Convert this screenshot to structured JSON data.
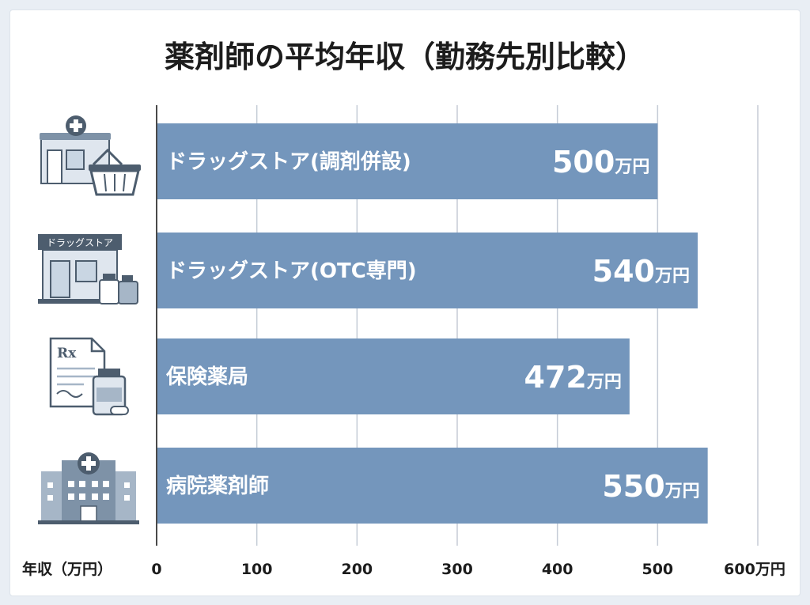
{
  "chart_data": {
    "type": "bar",
    "orientation": "horizontal",
    "title": "薬剤師の平均年収（勤務先別比較）",
    "xlabel": "年収（万円）",
    "xlim": [
      0,
      600
    ],
    "x_ticks": [
      "0",
      "100",
      "200",
      "300",
      "400",
      "500",
      "600万円"
    ],
    "categories": [
      "ドラッグストア(調剤併設)",
      "ドラッグストア(OTC専門)",
      "保険薬局",
      "病院薬剤師"
    ],
    "values": [
      500,
      540,
      472,
      550
    ],
    "value_labels": [
      "500",
      "540",
      "472",
      "550"
    ],
    "value_unit": "万円",
    "grid": true
  },
  "icons": {
    "row1": "drugstore-basket-icon",
    "row2": "drugstore-sign-icon",
    "row2_sign_text": "ドラッグストア",
    "row3": "prescription-bottle-icon",
    "row3_rx_text": "Rx",
    "row4": "hospital-icon"
  },
  "colors": {
    "bar": "#7496bc",
    "bar_label": "#ffffff",
    "grid": "#c5ccd6",
    "axis": "#4a4a4a",
    "icon_dark": "#4d5d6e",
    "icon_light": "#a6b6c7",
    "icon_pale": "#dfe6ee",
    "page_bg": "#e9eef4"
  }
}
